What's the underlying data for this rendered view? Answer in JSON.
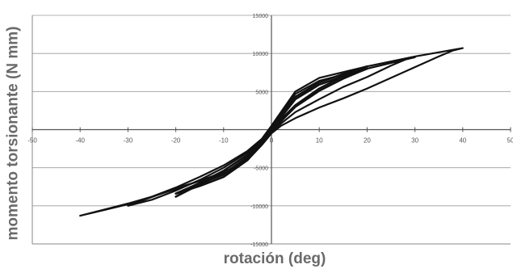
{
  "chart_data": {
    "type": "line",
    "xlabel": "rotación (deg)",
    "ylabel": "momento torsionante (N mm)",
    "xlim": [
      -50,
      50
    ],
    "ylim": [
      -15000,
      15000
    ],
    "x_ticks": [
      -50,
      -40,
      -30,
      -20,
      -10,
      0,
      10,
      20,
      30,
      40,
      50
    ],
    "x_tick_labels": [
      "-50",
      "-40",
      "-30",
      "-20",
      "-10",
      "0",
      "10",
      "20",
      "30",
      "40",
      "50"
    ],
    "y_ticks": [
      15000,
      10000,
      5000,
      0,
      -5000,
      -10000,
      -15000
    ],
    "y_tick_labels": [
      "15000",
      "10000",
      "5000",
      "0",
      "-5000",
      "-10000",
      "-15000"
    ],
    "grid": true,
    "series": [
      {
        "x": [
          -40,
          -35,
          -30,
          -25,
          -20,
          -15,
          -10,
          -5,
          -2,
          0,
          2,
          5,
          10,
          20,
          30,
          40,
          38,
          35,
          30,
          25,
          20,
          15,
          10,
          5,
          2,
          0,
          -2,
          -5,
          -10,
          -20,
          -30,
          -40
        ],
        "y": [
          -11300,
          -10500,
          -9700,
          -8800,
          -7600,
          -6200,
          -4700,
          -2800,
          -1200,
          500,
          2300,
          5000,
          6800,
          8300,
          9600,
          10700,
          10400,
          9600,
          8200,
          6800,
          5400,
          4100,
          2900,
          1500,
          500,
          -500,
          -2000,
          -4000,
          -5600,
          -7800,
          -9800,
          -11300
        ]
      },
      {
        "x": [
          -30,
          -25,
          -20,
          -15,
          -10,
          -5,
          -2,
          0,
          2,
          5,
          10,
          20,
          30,
          28,
          25,
          20,
          15,
          10,
          5,
          2,
          0,
          -2,
          -5,
          -10,
          -20,
          -30
        ],
        "y": [
          -10000,
          -9200,
          -8000,
          -6600,
          -5000,
          -3000,
          -1400,
          300,
          2100,
          4700,
          6400,
          8000,
          9500,
          9200,
          8400,
          6900,
          5600,
          4000,
          2300,
          800,
          -300,
          -1800,
          -3800,
          -5800,
          -7700,
          -10000
        ]
      },
      {
        "x": [
          -20,
          -15,
          -10,
          -5,
          -2,
          0,
          2,
          5,
          10,
          15,
          20,
          18,
          15,
          10,
          5,
          2,
          0,
          -2,
          -5,
          -10,
          -15,
          -20
        ],
        "y": [
          -8800,
          -7200,
          -5800,
          -3600,
          -1600,
          0,
          1800,
          4300,
          6200,
          7300,
          8300,
          7800,
          7000,
          5400,
          3200,
          1300,
          0,
          -1500,
          -3800,
          -5900,
          -7100,
          -8800
        ]
      },
      {
        "x": [
          -20,
          -15,
          -10,
          -5,
          -2,
          0,
          2,
          5,
          10,
          15,
          20,
          18,
          15,
          10,
          5,
          2,
          0,
          -2,
          -5,
          -10,
          -15,
          -20
        ],
        "y": [
          -8400,
          -7000,
          -5400,
          -3300,
          -1400,
          100,
          1600,
          4000,
          5900,
          7000,
          8000,
          7500,
          6700,
          5100,
          3000,
          1100,
          -200,
          -1700,
          -4000,
          -6200,
          -7400,
          -8400
        ]
      }
    ]
  }
}
